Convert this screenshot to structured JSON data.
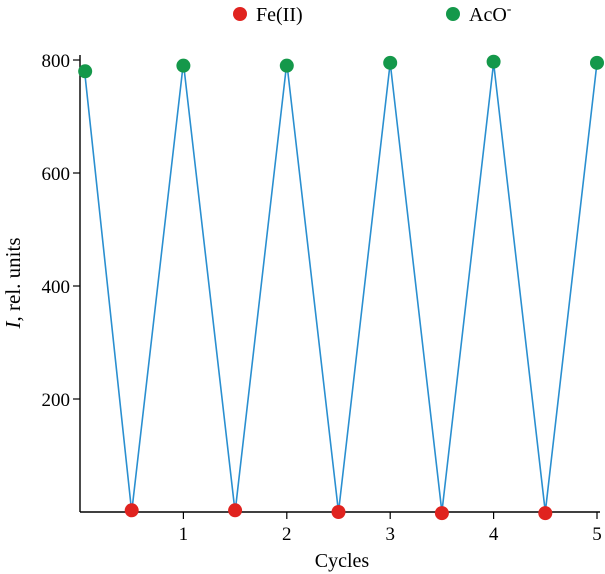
{
  "chart_data": {
    "type": "line",
    "title": "",
    "xlabel": "Cycles",
    "ylabel_italic": "I",
    "ylabel_rest": ", rel. units",
    "xlim": [
      0,
      5
    ],
    "ylim": [
      0,
      800
    ],
    "x_ticks": [
      1,
      2,
      3,
      4,
      5
    ],
    "y_ticks": [
      200,
      400,
      600,
      800
    ],
    "grid": false,
    "legend_position": "top",
    "legend": [
      {
        "label": "Fe(II)",
        "color": "#e0231f",
        "superscript": ""
      },
      {
        "label": "AcO",
        "color": "#14984a",
        "superscript": "-"
      }
    ],
    "line_color": "#2a8fd0",
    "line_x": [
      0.05,
      0.5,
      1.0,
      1.5,
      2.0,
      2.5,
      3.0,
      3.5,
      4.0,
      4.5,
      5.0
    ],
    "line_y": [
      770,
      0,
      795,
      0,
      795,
      0,
      795,
      0,
      795,
      0,
      795
    ],
    "series": [
      {
        "name": "Fe(II)",
        "color": "#e0231f",
        "x": [
          0.5,
          1.5,
          2.5,
          3.5,
          4.5
        ],
        "y": [
          3,
          3,
          0,
          -2,
          -2
        ]
      },
      {
        "name": "AcO-",
        "color": "#14984a",
        "x": [
          0.05,
          1.0,
          2.0,
          3.0,
          4.0,
          5.0
        ],
        "y": [
          780,
          790,
          790,
          795,
          797,
          795
        ]
      }
    ]
  }
}
